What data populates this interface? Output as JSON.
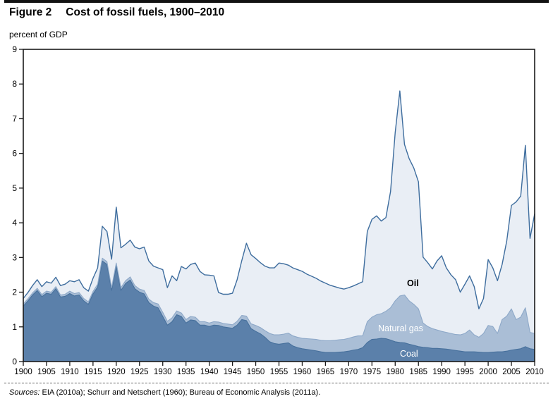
{
  "figure": {
    "label": "Figure 2",
    "title": "Cost of fossil fuels, 1900–2010",
    "y_axis_title": "percent of GDP",
    "sources_label": "Sources:",
    "sources_text": "EIA (2010a); Schurr and Netschert (1960); Bureau of Economic Analysis (2011a)."
  },
  "colors": {
    "axis": "#1a1a1a",
    "area_fills": [
      "#5b80aa",
      "#aabed6",
      "#e9eef5"
    ],
    "area_lines": [
      "#47709c",
      "#8da8c8",
      "#3e6d9e"
    ],
    "oil_label_text": "#000000",
    "gas_coal_label_text": "#ffffff"
  },
  "chart_data": {
    "type": "area",
    "stacked": true,
    "title": "Cost of fossil fuels, 1900–2010",
    "ylabel": "percent of GDP",
    "xlabel": "",
    "legend_position": "inside-area-labels",
    "grid": false,
    "xlim": [
      1900,
      2010
    ],
    "ylim": [
      0,
      9
    ],
    "x_ticks": [
      1900,
      1905,
      1910,
      1915,
      1920,
      1925,
      1930,
      1935,
      1940,
      1945,
      1950,
      1955,
      1960,
      1965,
      1970,
      1975,
      1980,
      1985,
      1990,
      1995,
      2000,
      2005,
      2010
    ],
    "y_ticks": [
      0,
      1,
      2,
      3,
      4,
      5,
      6,
      7,
      8,
      9
    ],
    "x": [
      1900,
      1901,
      1902,
      1903,
      1904,
      1905,
      1906,
      1907,
      1908,
      1909,
      1910,
      1911,
      1912,
      1913,
      1914,
      1915,
      1916,
      1917,
      1918,
      1919,
      1920,
      1921,
      1922,
      1923,
      1924,
      1925,
      1926,
      1927,
      1928,
      1929,
      1930,
      1931,
      1932,
      1933,
      1934,
      1935,
      1936,
      1937,
      1938,
      1939,
      1940,
      1941,
      1942,
      1943,
      1944,
      1945,
      1946,
      1947,
      1948,
      1949,
      1950,
      1951,
      1952,
      1953,
      1954,
      1955,
      1956,
      1957,
      1958,
      1959,
      1960,
      1961,
      1962,
      1963,
      1964,
      1965,
      1966,
      1967,
      1968,
      1969,
      1970,
      1971,
      1972,
      1973,
      1974,
      1975,
      1976,
      1977,
      1978,
      1979,
      1980,
      1981,
      1982,
      1983,
      1984,
      1985,
      1986,
      1987,
      1988,
      1989,
      1990,
      1991,
      1992,
      1993,
      1994,
      1995,
      1996,
      1997,
      1998,
      1999,
      2000,
      2001,
      2002,
      2003,
      2004,
      2005,
      2006,
      2007,
      2008,
      2009,
      2010
    ],
    "series": [
      {
        "name": "Coal",
        "values": [
          1.6,
          1.75,
          1.92,
          2.05,
          1.87,
          1.97,
          1.94,
          2.1,
          1.86,
          1.88,
          1.96,
          1.89,
          1.92,
          1.75,
          1.65,
          1.95,
          2.15,
          2.9,
          2.8,
          2.05,
          2.75,
          2.05,
          2.25,
          2.35,
          2.1,
          2.0,
          1.95,
          1.7,
          1.6,
          1.55,
          1.3,
          1.05,
          1.15,
          1.35,
          1.3,
          1.11,
          1.2,
          1.18,
          1.05,
          1.05,
          1.01,
          1.05,
          1.04,
          1.0,
          0.98,
          0.96,
          1.05,
          1.21,
          1.18,
          0.95,
          0.87,
          0.8,
          0.7,
          0.57,
          0.52,
          0.5,
          0.52,
          0.54,
          0.45,
          0.4,
          0.37,
          0.35,
          0.33,
          0.31,
          0.28,
          0.26,
          0.26,
          0.26,
          0.27,
          0.28,
          0.3,
          0.33,
          0.35,
          0.4,
          0.55,
          0.64,
          0.65,
          0.67,
          0.66,
          0.62,
          0.57,
          0.55,
          0.54,
          0.5,
          0.47,
          0.43,
          0.41,
          0.4,
          0.38,
          0.38,
          0.37,
          0.36,
          0.34,
          0.32,
          0.3,
          0.28,
          0.28,
          0.28,
          0.27,
          0.26,
          0.26,
          0.27,
          0.28,
          0.28,
          0.3,
          0.33,
          0.35,
          0.37,
          0.43,
          0.37,
          0.35
        ]
      },
      {
        "name": "Natural gas",
        "values": [
          0.06,
          0.06,
          0.06,
          0.06,
          0.06,
          0.06,
          0.06,
          0.06,
          0.06,
          0.06,
          0.07,
          0.07,
          0.07,
          0.07,
          0.07,
          0.07,
          0.08,
          0.08,
          0.08,
          0.08,
          0.09,
          0.08,
          0.08,
          0.09,
          0.09,
          0.09,
          0.1,
          0.1,
          0.1,
          0.11,
          0.12,
          0.11,
          0.11,
          0.11,
          0.1,
          0.1,
          0.1,
          0.1,
          0.1,
          0.1,
          0.1,
          0.1,
          0.1,
          0.1,
          0.1,
          0.1,
          0.11,
          0.12,
          0.13,
          0.14,
          0.17,
          0.18,
          0.19,
          0.24,
          0.25,
          0.27,
          0.27,
          0.28,
          0.29,
          0.3,
          0.3,
          0.31,
          0.32,
          0.33,
          0.33,
          0.34,
          0.34,
          0.35,
          0.36,
          0.36,
          0.37,
          0.38,
          0.39,
          0.34,
          0.6,
          0.64,
          0.7,
          0.71,
          0.79,
          0.93,
          1.18,
          1.34,
          1.38,
          1.25,
          1.18,
          1.09,
          0.7,
          0.61,
          0.57,
          0.53,
          0.5,
          0.48,
          0.47,
          0.46,
          0.47,
          0.53,
          0.63,
          0.49,
          0.43,
          0.55,
          0.78,
          0.74,
          0.53,
          0.93,
          1.01,
          1.19,
          0.86,
          0.91,
          1.12,
          0.47,
          0.46
        ]
      },
      {
        "name": "Oil",
        "values": [
          0.16,
          0.18,
          0.21,
          0.25,
          0.23,
          0.27,
          0.26,
          0.27,
          0.27,
          0.29,
          0.3,
          0.34,
          0.37,
          0.31,
          0.31,
          0.38,
          0.47,
          0.92,
          0.87,
          0.82,
          1.61,
          1.15,
          1.05,
          1.06,
          1.11,
          1.16,
          1.25,
          1.1,
          1.05,
          1.04,
          1.23,
          0.97,
          1.21,
          0.87,
          1.34,
          1.46,
          1.5,
          1.56,
          1.45,
          1.35,
          1.38,
          1.32,
          0.85,
          0.84,
          0.86,
          0.91,
          1.2,
          1.58,
          2.1,
          1.99,
          1.93,
          1.87,
          1.86,
          1.89,
          1.93,
          2.07,
          2.03,
          1.96,
          1.96,
          1.95,
          1.93,
          1.86,
          1.81,
          1.76,
          1.71,
          1.66,
          1.6,
          1.55,
          1.49,
          1.45,
          1.46,
          1.47,
          1.5,
          1.56,
          2.6,
          2.82,
          2.85,
          2.67,
          2.7,
          3.35,
          4.85,
          5.91,
          4.34,
          4.1,
          3.93,
          3.66,
          1.9,
          1.84,
          1.72,
          1.99,
          2.18,
          1.86,
          1.69,
          1.58,
          1.23,
          1.42,
          1.56,
          1.39,
          0.82,
          1.01,
          1.9,
          1.69,
          1.52,
          1.59,
          2.17,
          2.98,
          3.39,
          3.49,
          4.68,
          2.71,
          3.45
        ]
      }
    ]
  }
}
